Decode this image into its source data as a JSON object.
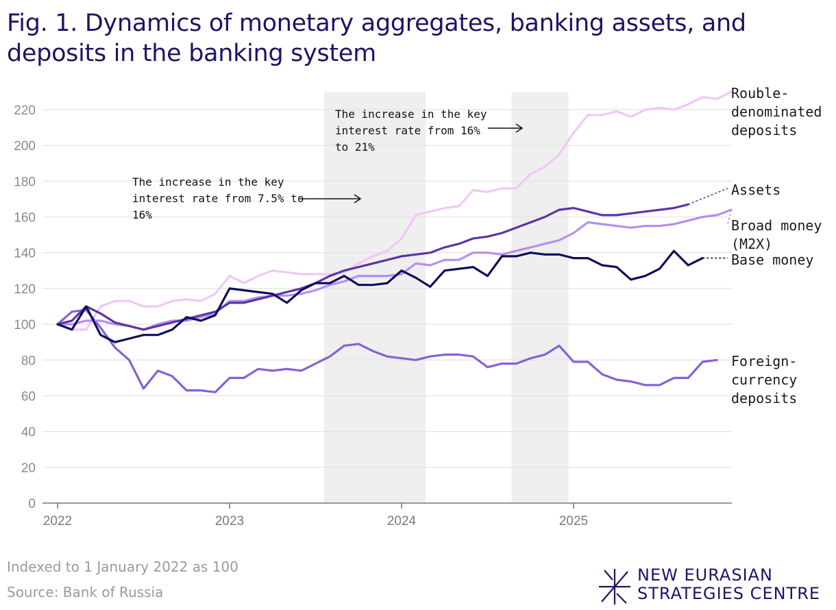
{
  "title": "Fig. 1. Dynamics of monetary aggregates, banking assets, and deposits in the banking system",
  "footer": {
    "note": "Indexed to 1 January 2022 as 100",
    "source": "Source: Bank of Russia"
  },
  "brand": {
    "line1": "NEW EURASIAN",
    "line2": "STRATEGIES CENTRE"
  },
  "chart_data": {
    "type": "line",
    "title": "Fig. 1. Dynamics of monetary aggregates, banking assets, and deposits in the banking system",
    "xlabel": "",
    "ylabel": "",
    "xlim": [
      2022.0,
      2025.9
    ],
    "ylim": [
      0,
      230
    ],
    "yticks": [
      0,
      20,
      40,
      60,
      80,
      100,
      120,
      140,
      160,
      180,
      200,
      220
    ],
    "xticks": [
      {
        "value": 2022,
        "label": "2022"
      },
      {
        "value": 2023,
        "label": "2023"
      },
      {
        "value": 2024,
        "label": "2024"
      },
      {
        "value": 2025,
        "label": "2025"
      }
    ],
    "grid": "horizontal",
    "shaded_periods": [
      {
        "start": 2023.55,
        "end": 2024.14
      },
      {
        "start": 2024.64,
        "end": 2024.97
      }
    ],
    "x_start": 2022.0,
    "x_step_months": 1,
    "series": [
      {
        "name": "Rouble-denominated deposits",
        "label_lines": [
          "Rouble-",
          "denominated",
          "deposits"
        ],
        "color": "#f2c6f8",
        "values": [
          100,
          97,
          97,
          110,
          113,
          113,
          110,
          110,
          113,
          114,
          113,
          117,
          127,
          123,
          127,
          130,
          129,
          128,
          128,
          128,
          129,
          134,
          138,
          141,
          148,
          161,
          163,
          165,
          166,
          175,
          174,
          176,
          176,
          184,
          188,
          195,
          207,
          217,
          217,
          219,
          216,
          220,
          221,
          220,
          223,
          227,
          226,
          230
        ]
      },
      {
        "name": "Assets",
        "label_lines": [
          "Assets"
        ],
        "color": "#5b34a6",
        "values": [
          100,
          102,
          110,
          106,
          101,
          99,
          97,
          99,
          101,
          103,
          105,
          107,
          112,
          112,
          114,
          116,
          118,
          120,
          123,
          127,
          130,
          132,
          134,
          136,
          138,
          139,
          140,
          143,
          145,
          148,
          149,
          151,
          154,
          157,
          160,
          164,
          165,
          163,
          161,
          161,
          162,
          163,
          164,
          165,
          167
        ],
        "projection_to": 176
      },
      {
        "name": "Broad money (M2X)",
        "label_lines": [
          "Broad money",
          "(M2X)"
        ],
        "color": "#b48ef0",
        "values": [
          100,
          100,
          102,
          102,
          100,
          99,
          97,
          100,
          102,
          102,
          104,
          106,
          113,
          113,
          115,
          116,
          116,
          117,
          119,
          122,
          124,
          127,
          127,
          127,
          128,
          134,
          133,
          136,
          136,
          140,
          140,
          139,
          141,
          143,
          145,
          147,
          151,
          157,
          156,
          155,
          154,
          155,
          155,
          156,
          158,
          160,
          161,
          164
        ],
        "projection_to": 156
      },
      {
        "name": "Base money",
        "label_lines": [
          "Base money"
        ],
        "color": "#0d0d5c",
        "values": [
          100,
          97,
          110,
          94,
          90,
          92,
          94,
          94,
          97,
          104,
          102,
          105,
          120,
          119,
          118,
          117,
          112,
          119,
          123,
          123,
          127,
          122,
          122,
          123,
          130,
          126,
          121,
          130,
          131,
          132,
          127,
          138,
          138,
          140,
          139,
          139,
          137,
          137,
          133,
          132,
          125,
          127,
          131,
          141,
          133,
          137
        ],
        "projection_to": 137
      },
      {
        "name": "Foreign-currency deposits",
        "label_lines": [
          "Foreign-",
          "currency",
          "deposits"
        ],
        "color": "#8660d8",
        "values": [
          100,
          107,
          108,
          98,
          87,
          80,
          64,
          74,
          71,
          63,
          63,
          62,
          70,
          70,
          75,
          74,
          75,
          74,
          78,
          82,
          88,
          89,
          85,
          82,
          81,
          80,
          82,
          83,
          83,
          82,
          76,
          78,
          78,
          81,
          83,
          88,
          79,
          79,
          72,
          69,
          68,
          66,
          66,
          70,
          70,
          79,
          80
        ]
      }
    ],
    "annotations": [
      {
        "lines": [
          "The increase in the key",
          "interest rate from 7.5% to",
          "16%"
        ]
      },
      {
        "lines": [
          "The increase in the key",
          "interest rate from 16%",
          "to 21%"
        ]
      }
    ]
  }
}
